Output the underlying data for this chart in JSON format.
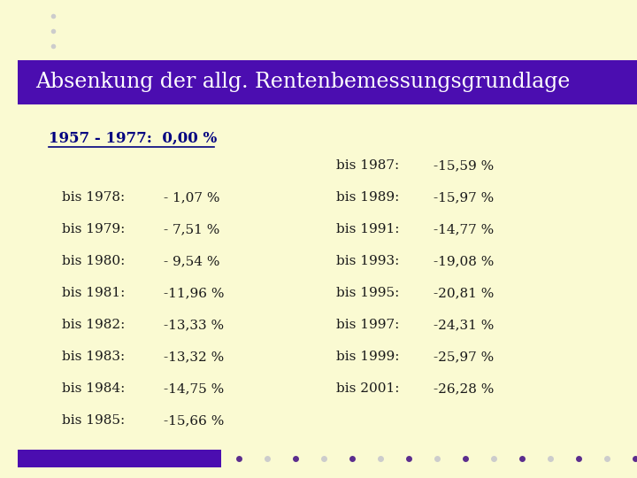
{
  "bg_color": "#FAFAD2",
  "header_bg": "#4B0DB0",
  "header_text": "Absenkung der allg. Rentenbemessungsgrundlage",
  "header_text_color": "#FFFFFF",
  "subtitle": "1957 - 1977:  0,00 %",
  "subtitle_color": "#000080",
  "left_col": [
    [
      "bis 1978:",
      "- 1,07 %"
    ],
    [
      "bis 1979:",
      "- 7,51 %"
    ],
    [
      "bis 1980:",
      "- 9,54 %"
    ],
    [
      "bis 1981:",
      "-11,96 %"
    ],
    [
      "bis 1982:",
      "-13,33 %"
    ],
    [
      "bis 1983:",
      "-13,32 %"
    ],
    [
      "bis 1984:",
      "-14,75 %"
    ],
    [
      "bis 1985:",
      "-15,66 %"
    ]
  ],
  "right_col": [
    [
      "bis 1987:",
      "-15,59 %"
    ],
    [
      "bis 1989:",
      "-15,97 %"
    ],
    [
      "bis 1991:",
      "-14,77 %"
    ],
    [
      "bis 1993:",
      "-19,08 %"
    ],
    [
      "bis 1995:",
      "-20,81 %"
    ],
    [
      "bis 1997:",
      "-24,31 %"
    ],
    [
      "bis 1999:",
      "-25,97 %"
    ],
    [
      "bis 2001:",
      "-26,28 %"
    ]
  ],
  "text_color": "#1a1a1a",
  "dot_color_dark": "#5B2D8E",
  "dot_color_light": "#CCCCCC",
  "footer_bar_color": "#4B0DB0",
  "font_size_header": 17,
  "font_size_subtitle": 12,
  "font_size_data": 11
}
